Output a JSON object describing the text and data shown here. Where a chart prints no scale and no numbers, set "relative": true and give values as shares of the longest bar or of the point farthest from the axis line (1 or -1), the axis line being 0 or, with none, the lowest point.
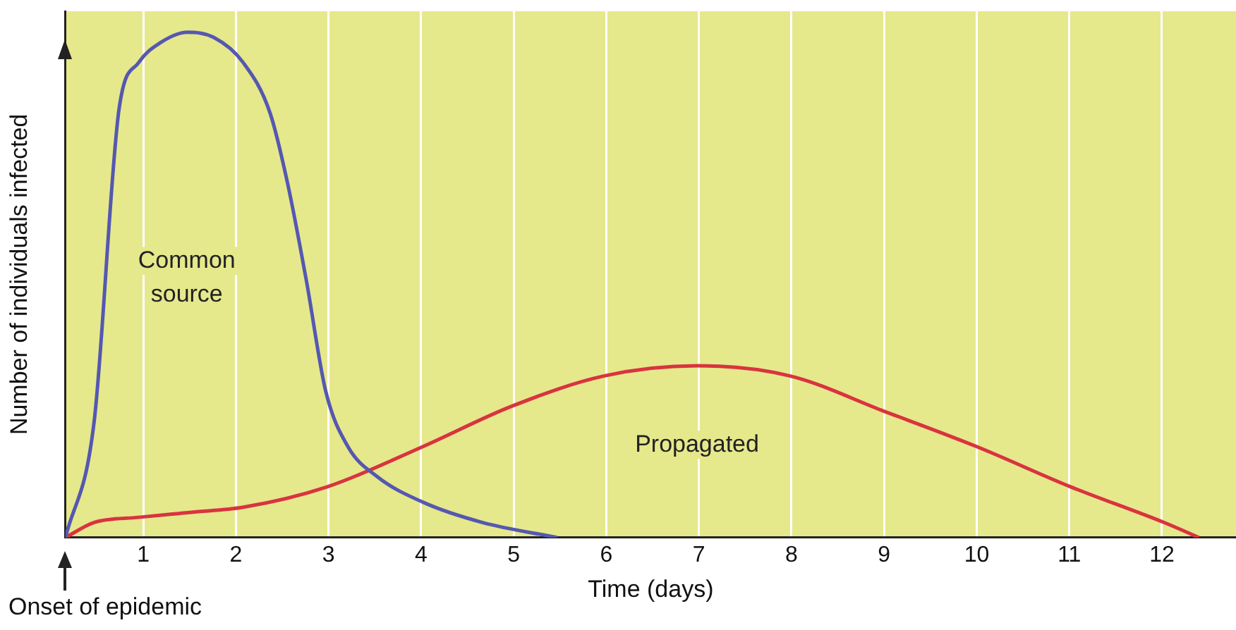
{
  "chart_data": {
    "type": "line",
    "relative": true,
    "xlabel": "Time (days)",
    "ylabel": "Number of individuals infected",
    "xlim": [
      0.16,
      12.8
    ],
    "xticks": [
      1,
      2,
      3,
      4,
      5,
      6,
      7,
      8,
      9,
      10,
      11,
      12
    ],
    "grid": "x",
    "marker": "none",
    "line_style": "solid",
    "legend": false,
    "annotations": [
      "Onset of epidemic"
    ],
    "series": [
      {
        "name": "Common source",
        "color": "#5558b0",
        "x": [
          0.16,
          0.47,
          0.74,
          0.95,
          1.19,
          1.47,
          1.76,
          2.08,
          2.37,
          2.56,
          2.76,
          2.97,
          3.21,
          3.53,
          4.02,
          4.66,
          5.47
        ],
        "values": [
          0,
          0.23,
          0.85,
          0.94,
          0.98,
          1,
          0.99,
          0.94,
          0.84,
          0.7,
          0.51,
          0.29,
          0.18,
          0.12,
          0.07,
          0.03,
          0
        ]
      },
      {
        "name": "Propagated",
        "color": "#d8343f",
        "x": [
          0.16,
          0.47,
          0.95,
          1.52,
          2.08,
          2.98,
          4.02,
          4.98,
          5.98,
          6.98,
          7.98,
          9,
          10,
          11.02,
          12.02,
          12.4
        ],
        "values": [
          0,
          0.03,
          0.04,
          0.05,
          0.06,
          0.1,
          0.18,
          0.26,
          0.32,
          0.34,
          0.32,
          0.25,
          0.18,
          0.1,
          0.03,
          0
        ]
      }
    ]
  }
}
